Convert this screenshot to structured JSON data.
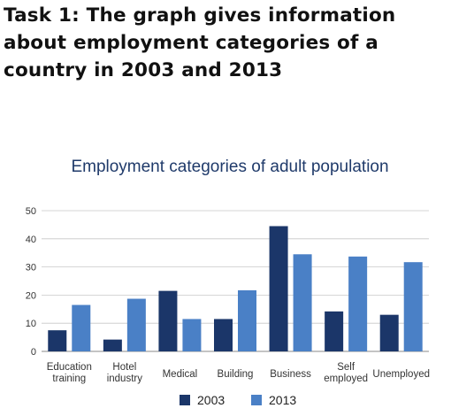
{
  "task_heading": "Task 1: The graph gives information about employment categories of a country in 2003 and 2013",
  "colors": {
    "series_2003": "#1b3669",
    "series_2013": "#4a80c6",
    "grid": "#c8c8c8",
    "axis": "#888888"
  },
  "chart_data": {
    "type": "bar",
    "title": "Employment categories of adult population",
    "xlabel": "",
    "ylabel": "",
    "ylim": [
      0,
      50
    ],
    "yticks": [
      "0",
      "10",
      "20",
      "30",
      "40",
      "50"
    ],
    "categories": [
      [
        "Education",
        "training"
      ],
      [
        "Hotel",
        "industry"
      ],
      [
        "Medical"
      ],
      [
        "Building"
      ],
      [
        "Business"
      ],
      [
        "Self",
        "employed"
      ],
      [
        "Unemployed"
      ]
    ],
    "series": [
      {
        "name": "2003",
        "values": [
          7.5,
          4.2,
          21.5,
          11.5,
          44.5,
          14.2,
          13
        ]
      },
      {
        "name": "2013",
        "values": [
          16.5,
          18.7,
          11.5,
          21.7,
          34.5,
          33.7,
          31.7
        ]
      }
    ],
    "grid": true,
    "legend_position": "bottom"
  }
}
